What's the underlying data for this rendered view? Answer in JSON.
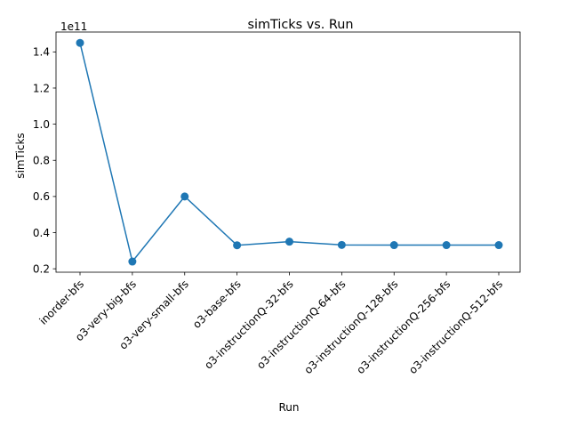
{
  "chart_data": {
    "type": "line",
    "title": "simTicks vs. Run",
    "xlabel": "Run",
    "ylabel": "simTicks",
    "offset_label": "1e11",
    "categories": [
      "inorder-bfs",
      "o3-very-big-bfs",
      "o3-very-small-bfs",
      "o3-base-bfs",
      "o3-instructionQ-32-bfs",
      "o3-instructionQ-64-bfs",
      "o3-instructionQ-128-bfs",
      "o3-instructionQ-256-bfs",
      "o3-instructionQ-512-bfs"
    ],
    "values": [
      145000000000,
      24000000000,
      60000000000,
      33000000000,
      35000000000,
      33200000000,
      33100000000,
      33100000000,
      33100000000
    ],
    "yticks": [
      0.2,
      0.4,
      0.6,
      0.8,
      1.0,
      1.2,
      1.4
    ],
    "ytick_labels": [
      "0.2",
      "0.4",
      "0.6",
      "0.8",
      "1.0",
      "1.2",
      "1.4"
    ],
    "ylim": [
      18100000000,
      151000000000
    ],
    "grid": false,
    "line_color": "#1f77b4"
  }
}
